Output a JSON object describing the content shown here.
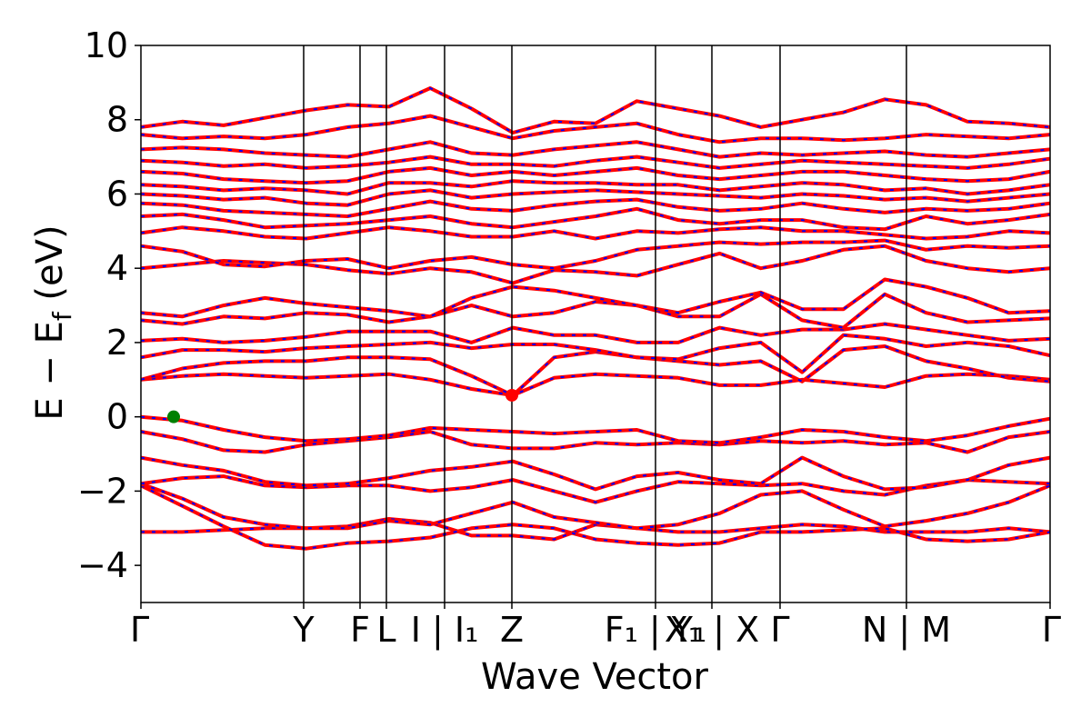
{
  "chart_data": {
    "type": "line",
    "title": "",
    "xlabel": "Wave Vector",
    "ylabel": "E − E",
    "ylabel_sub": "f",
    "ylabel_unit": " (eV)",
    "ylim": [
      -5,
      10
    ],
    "y_ticks": [
      -4,
      -2,
      0,
      2,
      4,
      6,
      8,
      10
    ],
    "y_tick_labels": [
      "−4",
      "−2",
      "0",
      "2",
      "4",
      "6",
      "8",
      "10"
    ],
    "xlim": [
      0,
      1
    ],
    "k_points": [
      {
        "pos": 0.0,
        "label": "Γ"
      },
      {
        "pos": 0.179,
        "label": "Y"
      },
      {
        "pos": 0.241,
        "label": "F"
      },
      {
        "pos": 0.27,
        "label": "L"
      },
      {
        "pos": 0.334,
        "label": "I | I₁"
      },
      {
        "pos": 0.408,
        "label": "Z"
      },
      {
        "pos": 0.566,
        "label": "F₁ | Y₁"
      },
      {
        "pos": 0.628,
        "label": "X₁ | X"
      },
      {
        "pos": 0.703,
        "label": "Γ"
      },
      {
        "pos": 0.842,
        "label": "N | M"
      },
      {
        "pos": 1.0,
        "label": "Γ"
      }
    ],
    "grid": false,
    "legend": "none",
    "line_colors": {
      "primary": "#ff0000",
      "overlay": "#0000ff"
    },
    "markers": [
      {
        "name": "VBM",
        "k": 0.036,
        "energy": 0.0,
        "color": "#008000"
      },
      {
        "name": "CBM",
        "k": 0.408,
        "energy": 0.58,
        "color": "#ff0000"
      }
    ],
    "bands": [
      {
        "values": [
          -3.1,
          -3.1,
          -3.05,
          -3.0,
          -3.0,
          -2.95,
          -2.75,
          -2.85,
          -3.2,
          -3.2,
          -3.3,
          -2.9,
          -3.0,
          -3.1,
          -3.1,
          -3.0,
          -2.9,
          -2.95,
          -3.1,
          -3.1,
          -3.1,
          -3.0,
          -3.1
        ]
      },
      {
        "values": [
          -1.85,
          -2.4,
          -2.95,
          -3.45,
          -3.55,
          -3.4,
          -3.35,
          -3.25,
          -3.0,
          -2.9,
          -3.0,
          -3.3,
          -3.4,
          -3.45,
          -3.4,
          -3.1,
          -3.1,
          -3.05,
          -3.0,
          -3.3,
          -3.35,
          -3.3,
          -3.1
        ]
      },
      {
        "values": [
          -1.8,
          -2.2,
          -2.7,
          -2.9,
          -3.0,
          -3.0,
          -2.8,
          -2.9,
          -2.6,
          -2.3,
          -2.7,
          -2.85,
          -3.0,
          -2.9,
          -2.6,
          -2.1,
          -2.0,
          -2.5,
          -2.95,
          -2.8,
          -2.6,
          -2.3,
          -1.85
        ]
      },
      {
        "values": [
          -1.8,
          -1.65,
          -1.6,
          -1.85,
          -1.9,
          -1.85,
          -1.85,
          -2.0,
          -1.9,
          -1.7,
          -2.0,
          -2.3,
          -2.0,
          -1.75,
          -1.8,
          -1.85,
          -1.8,
          -2.0,
          -2.1,
          -1.85,
          -1.7,
          -1.75,
          -1.8
        ]
      },
      {
        "values": [
          -1.1,
          -1.3,
          -1.45,
          -1.75,
          -1.85,
          -1.8,
          -1.65,
          -1.45,
          -1.35,
          -1.2,
          -1.55,
          -1.95,
          -1.6,
          -1.5,
          -1.7,
          -1.8,
          -1.1,
          -1.6,
          -1.95,
          -1.9,
          -1.7,
          -1.3,
          -1.1
        ]
      },
      {
        "values": [
          -0.4,
          -0.6,
          -0.9,
          -0.95,
          -0.75,
          -0.65,
          -0.55,
          -0.4,
          -0.75,
          -0.85,
          -0.85,
          -0.7,
          -0.75,
          -0.7,
          -0.75,
          -0.65,
          -0.7,
          -0.65,
          -0.75,
          -0.7,
          -0.95,
          -0.55,
          -0.4
        ]
      },
      {
        "values": [
          0.0,
          -0.1,
          -0.35,
          -0.55,
          -0.65,
          -0.6,
          -0.5,
          -0.3,
          -0.35,
          -0.4,
          -0.45,
          -0.4,
          -0.35,
          -0.65,
          -0.7,
          -0.55,
          -0.35,
          -0.4,
          -0.55,
          -0.65,
          -0.5,
          -0.25,
          -0.05
        ]
      },
      {
        "values": [
          1.0,
          1.1,
          1.15,
          1.1,
          1.05,
          1.1,
          1.15,
          1.0,
          0.75,
          0.58,
          1.05,
          1.15,
          1.1,
          1.05,
          0.85,
          0.85,
          1.0,
          0.9,
          0.8,
          1.1,
          1.15,
          1.1,
          1.0
        ]
      },
      {
        "values": [
          1.0,
          1.3,
          1.45,
          1.5,
          1.5,
          1.6,
          1.6,
          1.55,
          1.1,
          0.58,
          1.6,
          1.75,
          1.6,
          1.5,
          1.4,
          1.5,
          0.95,
          1.8,
          1.9,
          1.5,
          1.3,
          1.05,
          0.95
        ]
      },
      {
        "values": [
          1.6,
          1.8,
          1.8,
          1.75,
          1.85,
          1.9,
          1.95,
          2.0,
          1.85,
          1.95,
          1.95,
          1.8,
          1.6,
          1.55,
          1.85,
          2.0,
          1.2,
          2.2,
          2.1,
          1.9,
          2.0,
          1.9,
          1.65
        ]
      },
      {
        "values": [
          2.05,
          2.1,
          2.0,
          2.05,
          2.15,
          2.3,
          2.3,
          2.3,
          2.0,
          2.4,
          2.2,
          2.2,
          2.0,
          2.0,
          2.4,
          2.2,
          2.35,
          2.35,
          2.5,
          2.35,
          2.2,
          2.05,
          2.1
        ]
      },
      {
        "values": [
          2.6,
          2.5,
          2.7,
          2.65,
          2.8,
          2.75,
          2.55,
          2.7,
          3.0,
          2.7,
          2.8,
          3.1,
          3.0,
          2.7,
          2.7,
          3.3,
          2.6,
          2.4,
          3.3,
          2.8,
          2.55,
          2.6,
          2.65
        ]
      },
      {
        "values": [
          2.8,
          2.7,
          3.0,
          3.2,
          3.05,
          2.95,
          2.85,
          2.7,
          3.2,
          3.5,
          3.4,
          3.2,
          3.0,
          2.8,
          3.1,
          3.35,
          2.9,
          2.9,
          3.7,
          3.5,
          3.2,
          2.8,
          2.85
        ]
      },
      {
        "values": [
          4.0,
          4.1,
          4.2,
          4.15,
          4.1,
          3.95,
          3.85,
          4.0,
          3.9,
          3.6,
          3.95,
          3.9,
          3.8,
          4.1,
          4.4,
          4.0,
          4.2,
          4.5,
          4.6,
          4.2,
          4.0,
          3.9,
          4.0
        ]
      },
      {
        "values": [
          4.6,
          4.45,
          4.1,
          4.05,
          4.2,
          4.25,
          4.0,
          4.2,
          4.3,
          4.1,
          4.0,
          4.2,
          4.5,
          4.6,
          4.7,
          4.65,
          4.7,
          4.7,
          4.75,
          4.5,
          4.6,
          4.55,
          4.6
        ]
      },
      {
        "values": [
          4.95,
          5.1,
          5.0,
          4.85,
          4.8,
          4.95,
          5.1,
          5.0,
          4.85,
          4.85,
          5.0,
          4.8,
          5.0,
          4.95,
          5.05,
          5.1,
          5.0,
          5.0,
          4.9,
          4.8,
          4.85,
          5.0,
          4.95
        ]
      },
      {
        "values": [
          5.4,
          5.45,
          5.3,
          5.1,
          5.15,
          5.2,
          5.3,
          5.4,
          5.2,
          5.1,
          5.25,
          5.4,
          5.6,
          5.3,
          5.2,
          5.3,
          5.3,
          5.1,
          5.05,
          5.4,
          5.2,
          5.3,
          5.45
        ]
      },
      {
        "values": [
          5.75,
          5.7,
          5.55,
          5.5,
          5.45,
          5.4,
          5.6,
          5.8,
          5.6,
          5.55,
          5.7,
          5.8,
          5.85,
          5.65,
          5.55,
          5.6,
          5.75,
          5.6,
          5.5,
          5.6,
          5.55,
          5.6,
          5.75
        ]
      },
      {
        "values": [
          6.0,
          5.95,
          5.85,
          5.9,
          5.75,
          5.7,
          6.0,
          6.1,
          5.9,
          6.0,
          6.05,
          6.1,
          6.05,
          6.0,
          5.95,
          5.9,
          6.0,
          5.95,
          5.85,
          5.9,
          5.8,
          5.9,
          6.0
        ]
      },
      {
        "values": [
          6.25,
          6.2,
          6.1,
          6.15,
          6.1,
          6.0,
          6.3,
          6.3,
          6.2,
          6.35,
          6.3,
          6.3,
          6.25,
          6.25,
          6.1,
          6.2,
          6.3,
          6.25,
          6.1,
          6.15,
          6.0,
          6.1,
          6.25
        ]
      },
      {
        "values": [
          6.6,
          6.55,
          6.4,
          6.35,
          6.3,
          6.35,
          6.6,
          6.7,
          6.5,
          6.6,
          6.5,
          6.6,
          6.7,
          6.5,
          6.4,
          6.5,
          6.6,
          6.6,
          6.5,
          6.4,
          6.35,
          6.4,
          6.6
        ]
      },
      {
        "values": [
          6.9,
          6.85,
          6.75,
          6.8,
          6.7,
          6.75,
          6.85,
          7.0,
          6.8,
          6.8,
          6.75,
          6.9,
          7.0,
          6.85,
          6.7,
          6.8,
          6.9,
          6.85,
          6.8,
          6.75,
          6.7,
          6.8,
          6.95
        ]
      },
      {
        "values": [
          7.2,
          7.25,
          7.2,
          7.1,
          7.05,
          7.0,
          7.2,
          7.4,
          7.1,
          7.05,
          7.2,
          7.3,
          7.4,
          7.2,
          7.0,
          7.1,
          7.05,
          7.1,
          7.15,
          7.05,
          7.0,
          7.1,
          7.2
        ]
      },
      {
        "values": [
          7.6,
          7.5,
          7.55,
          7.5,
          7.6,
          7.8,
          7.9,
          8.1,
          7.8,
          7.5,
          7.7,
          7.8,
          7.9,
          7.6,
          7.4,
          7.5,
          7.5,
          7.45,
          7.5,
          7.6,
          7.55,
          7.5,
          7.6
        ]
      },
      {
        "values": [
          7.8,
          7.95,
          7.85,
          8.05,
          8.25,
          8.4,
          8.35,
          8.85,
          8.3,
          7.65,
          7.95,
          7.9,
          8.5,
          8.3,
          8.1,
          7.8,
          8.0,
          8.2,
          8.55,
          8.4,
          7.95,
          7.9,
          7.8
        ]
      }
    ]
  }
}
